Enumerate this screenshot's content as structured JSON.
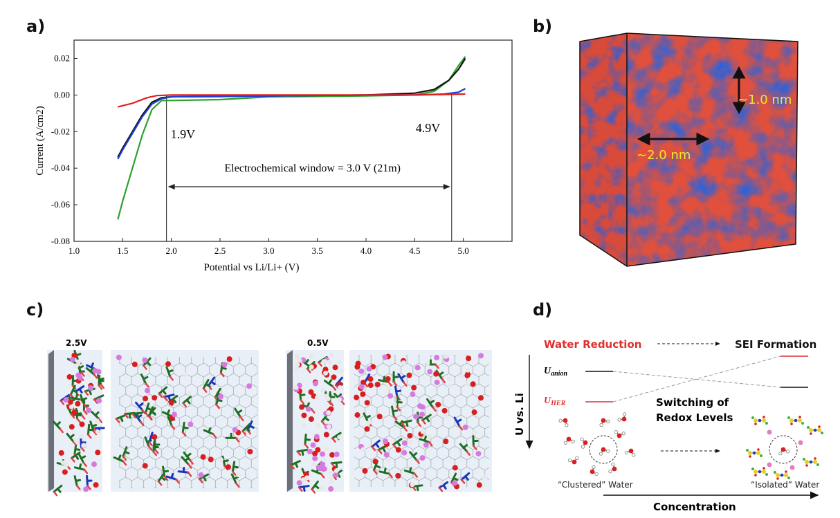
{
  "panels": {
    "a": "a)",
    "b": "b)",
    "c": "c)",
    "d": "d)"
  },
  "chart_data": {
    "type": "line",
    "xlabel": "Potential vs Li/Li+ (V)",
    "ylabel": "Current (A/cm2)",
    "xlim": [
      1.0,
      5.5
    ],
    "ylim": [
      -0.08,
      0.03
    ],
    "x_ticks": [
      "1.0",
      "1.5",
      "2.0",
      "2.5",
      "3.0",
      "3.5",
      "4.0",
      "4.5",
      "5.0"
    ],
    "y_ticks": [
      "0.02",
      "0.00",
      "-0.02",
      "-0.04",
      "-0.06",
      "-0.08"
    ],
    "grid": false,
    "series": [
      {
        "color": "#2ca02c",
        "x": [
          1.45,
          1.5,
          1.6,
          1.7,
          1.8,
          1.9,
          2.0,
          2.5,
          3.0,
          4.0,
          4.5,
          4.7,
          4.85,
          4.95,
          5.02
        ],
        "y": [
          -0.068,
          -0.058,
          -0.04,
          -0.022,
          -0.008,
          -0.003,
          -0.003,
          -0.0025,
          -0.001,
          -0.0005,
          0.0,
          0.002,
          0.008,
          0.016,
          0.021
        ]
      },
      {
        "color": "#111111",
        "x": [
          1.45,
          1.5,
          1.6,
          1.7,
          1.8,
          1.9,
          2.0,
          2.5,
          3.0,
          4.0,
          4.5,
          4.7,
          4.85,
          4.95,
          5.02
        ],
        "y": [
          -0.034,
          -0.029,
          -0.02,
          -0.011,
          -0.004,
          -0.0015,
          -0.001,
          -0.0008,
          -0.0005,
          0.0,
          0.001,
          0.003,
          0.008,
          0.014,
          0.02
        ]
      },
      {
        "color": "#1f3fd6",
        "x": [
          1.45,
          1.5,
          1.6,
          1.7,
          1.8,
          1.9,
          2.0,
          2.5,
          3.0,
          4.0,
          4.5,
          4.8,
          4.95,
          5.02
        ],
        "y": [
          -0.035,
          -0.03,
          -0.021,
          -0.012,
          -0.005,
          -0.002,
          -0.001,
          -0.0008,
          -0.0005,
          0.0,
          0.0,
          0.0005,
          0.0015,
          0.0035
        ]
      },
      {
        "color": "#e02020",
        "x": [
          1.45,
          1.6,
          1.75,
          1.85,
          2.0,
          2.5,
          3.0,
          4.0,
          4.5,
          5.02
        ],
        "y": [
          -0.0065,
          -0.0045,
          -0.0015,
          -0.0003,
          0.0,
          0.0,
          0.0,
          0.0,
          0.0,
          0.0005
        ]
      }
    ],
    "annotations": {
      "left_voltage": "1.9V",
      "right_voltage": "4.9V",
      "window": "Electrochemical window = 3.0 V (21m)",
      "left_x": 1.95,
      "right_x": 4.88
    }
  },
  "panel_b": {
    "label_2nm": "~2.0 nm",
    "label_1nm": "~1.0 nm"
  },
  "panel_c": {
    "left_voltage": "2.5V",
    "right_voltage": "0.5V"
  },
  "panel_d": {
    "water_reduction": "Water Reduction",
    "sei_formation": "SEI Formation",
    "u_axis": "U vs. Li",
    "u_anion": "U",
    "u_anion_sub": "anion",
    "u_her": "U",
    "u_her_sub": "HER",
    "switching_line1": "Switching of",
    "switching_line2": "Redox Levels",
    "clustered": "“Clustered” Water",
    "isolated": "“Isolated” Water",
    "concentration": "Concentration",
    "colors": {
      "red": "#e03030",
      "black": "#111111"
    }
  }
}
